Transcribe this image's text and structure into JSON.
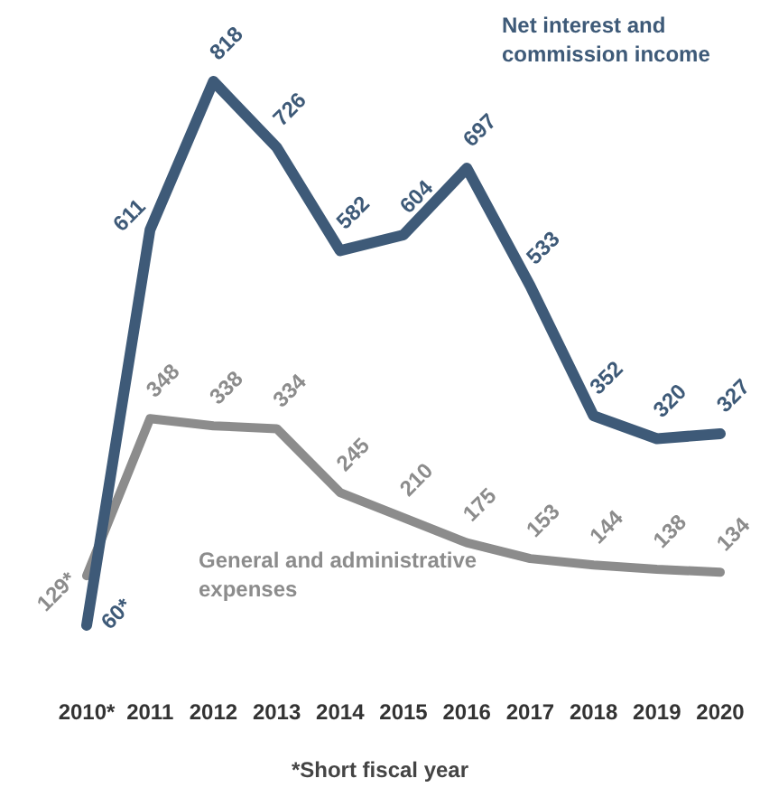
{
  "chart_data": {
    "type": "line",
    "categories": [
      "2010*",
      "2011",
      "2012",
      "2013",
      "2014",
      "2015",
      "2016",
      "2017",
      "2018",
      "2019",
      "2020"
    ],
    "series": [
      {
        "name": "Net interest and commission income",
        "color": "#3e5a78",
        "values": [
          60,
          611,
          818,
          726,
          582,
          604,
          697,
          533,
          352,
          320,
          327
        ],
        "value_labels": [
          "60*",
          "611",
          "818",
          "726",
          "582",
          "604",
          "697",
          "533",
          "352",
          "320",
          "327"
        ]
      },
      {
        "name": "General and administrative expenses",
        "color": "#8c8c8c",
        "values": [
          129,
          348,
          338,
          334,
          245,
          210,
          175,
          153,
          144,
          138,
          134
        ],
        "value_labels": [
          "129*",
          "348",
          "338",
          "334",
          "245",
          "210",
          "175",
          "153",
          "144",
          "138",
          "134"
        ]
      }
    ],
    "annotations": [
      "*Short fiscal year"
    ],
    "tick_labels": "x",
    "legend": false,
    "grid": false,
    "marker": "none",
    "line_style": "solid"
  }
}
